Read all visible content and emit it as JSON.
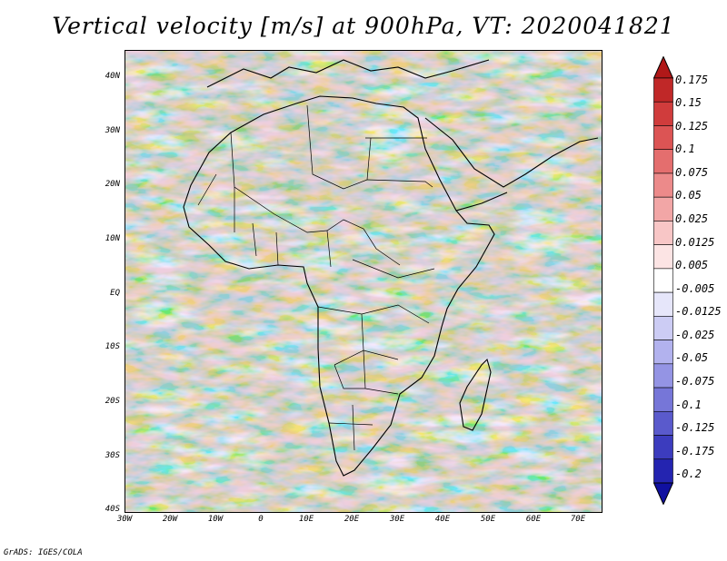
{
  "title": "Vertical velocity [m/s] at 900hPa, VT: 2020041821",
  "footer": "GrADS: IGES/COLA",
  "map": {
    "region": "Africa",
    "lon_range": [
      -30,
      75
    ],
    "lat_range": [
      -40,
      45
    ],
    "lat_labels": [
      "40N",
      "30N",
      "20N",
      "10N",
      "EQ",
      "10S",
      "20S",
      "30S",
      "40S"
    ],
    "lon_labels": [
      "30W",
      "20W",
      "10W",
      "0",
      "10E",
      "20E",
      "30E",
      "40E",
      "50E",
      "60E",
      "70E"
    ]
  },
  "colorbar": {
    "labels": [
      "0.175",
      "0.15",
      "0.125",
      "0.1",
      "0.075",
      "0.05",
      "0.025",
      "0.0125",
      "0.005",
      "-0.005",
      "-0.0125",
      "-0.025",
      "-0.05",
      "-0.075",
      "-0.1",
      "-0.125",
      "-0.175",
      "-0.2"
    ],
    "colors": [
      "#b01818",
      "#c02828",
      "#d03c3c",
      "#dc5454",
      "#e46e6e",
      "#ec8a8a",
      "#f2a6a6",
      "#f8c6c6",
      "#fce4e4",
      "#ffffff",
      "#e6e6fa",
      "#ccccf4",
      "#b2b2ee",
      "#9494e4",
      "#7676d8",
      "#5a5acc",
      "#3c3cbe",
      "#2424b0",
      "#1010a0"
    ]
  }
}
